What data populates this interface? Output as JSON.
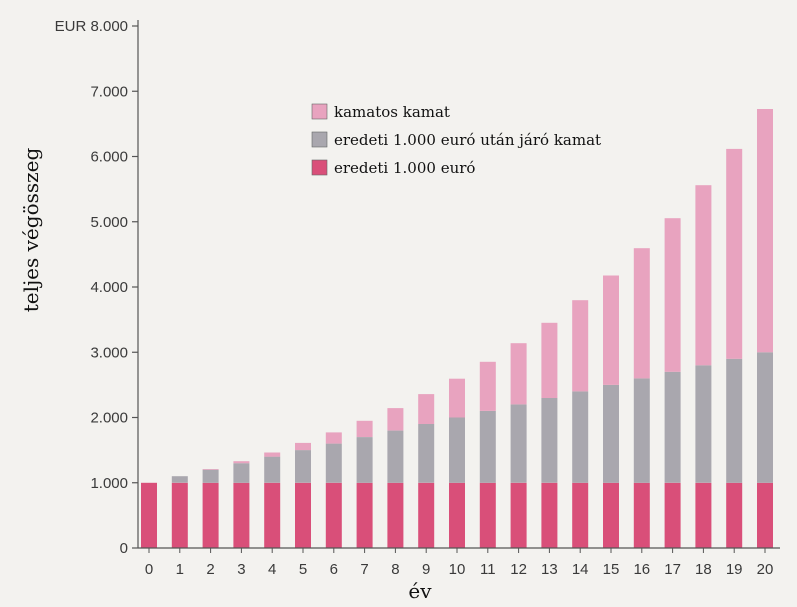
{
  "chart_data": {
    "type": "bar",
    "stacked": true,
    "categories": [
      "0",
      "1",
      "2",
      "3",
      "4",
      "5",
      "6",
      "7",
      "8",
      "9",
      "10",
      "11",
      "12",
      "13",
      "14",
      "15",
      "16",
      "17",
      "18",
      "19",
      "20"
    ],
    "series": [
      {
        "name": "eredeti 1.000 euró",
        "color": "#d94f79",
        "values": [
          1000,
          1000,
          1000,
          1000,
          1000,
          1000,
          1000,
          1000,
          1000,
          1000,
          1000,
          1000,
          1000,
          1000,
          1000,
          1000,
          1000,
          1000,
          1000,
          1000,
          1000
        ]
      },
      {
        "name": "eredeti 1.000 euró után járó kamat",
        "color": "#a9a7ae",
        "values": [
          0,
          100,
          200,
          300,
          400,
          500,
          600,
          700,
          800,
          900,
          1000,
          1100,
          1200,
          1300,
          1400,
          1500,
          1600,
          1700,
          1800,
          1900,
          2000
        ]
      },
      {
        "name": "kamatos kamat",
        "color": "#e8a3bf",
        "values": [
          0,
          0,
          10,
          31,
          64,
          111,
          172,
          249,
          344,
          458,
          594,
          753,
          938,
          1152,
          1398,
          1677,
          1995,
          2354,
          2760,
          3217,
          3728
        ]
      }
    ],
    "legend_order": [
      "kamatos kamat",
      "eredeti 1.000 euró után járó kamat",
      "eredeti 1.000 euró"
    ],
    "y_tick_labels": [
      "0",
      "1.000",
      "2.000",
      "3.000",
      "4.000",
      "5.000",
      "6.000",
      "7.000",
      "EUR 8.000"
    ],
    "y_ticks": [
      0,
      1000,
      2000,
      3000,
      4000,
      5000,
      6000,
      7000,
      8000
    ],
    "ylim": [
      0,
      8000
    ],
    "xlabel": "év",
    "ylabel": "teljes végösszeg",
    "legend_position": "top-center",
    "grid": false
  }
}
